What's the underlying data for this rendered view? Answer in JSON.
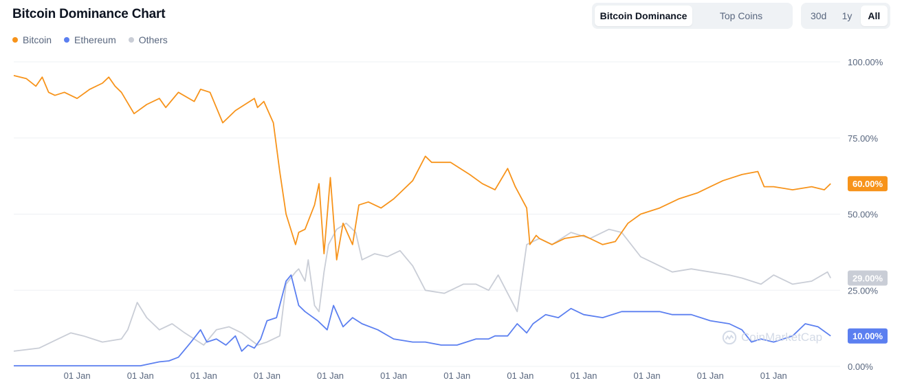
{
  "header": {
    "title": "Bitcoin Dominance Chart",
    "view_tabs": [
      {
        "label": "Bitcoin Dominance",
        "active": true
      },
      {
        "label": "Top Coins",
        "active": false
      }
    ],
    "range_tabs": [
      {
        "label": "30d",
        "active": false
      },
      {
        "label": "1y",
        "active": false
      },
      {
        "label": "All",
        "active": true
      }
    ]
  },
  "watermark": {
    "text": "CoinMarketCap",
    "icon": "coinmarketcap-logo-icon"
  },
  "colors": {
    "bitcoin": "#f7931a",
    "ethereum": "#5b7ff0",
    "others": "#c9cdd6",
    "grid": "#eef0f3"
  },
  "chart_data": {
    "type": "line",
    "y_axis": {
      "position": "right",
      "ylim": [
        0,
        100
      ],
      "ticks": [
        0,
        25,
        50,
        75,
        100
      ],
      "tick_labels": [
        "0.00%",
        "25.00%",
        "50.00%",
        "75.00%",
        "100.00%"
      ]
    },
    "x_axis": {
      "tick_labels": [
        "01 Jan",
        "01 Jan",
        "01 Jan",
        "01 Jan",
        "01 Jan",
        "01 Jan",
        "01 Jan",
        "01 Jan",
        "01 Jan",
        "01 Jan",
        "01 Jan",
        "01 Jan"
      ],
      "tick_positions": [
        1,
        2,
        3,
        4,
        5,
        6,
        7,
        8,
        9,
        10,
        11,
        12
      ],
      "xlim": [
        0,
        13.05
      ]
    },
    "legend": {
      "placement": "top-left"
    },
    "series": [
      {
        "name": "Bitcoin",
        "color": "#f7931a",
        "last_value_label": "60.00%",
        "x": [
          0,
          0.2,
          0.35,
          0.45,
          0.55,
          0.65,
          0.8,
          1.0,
          1.2,
          1.4,
          1.5,
          1.6,
          1.7,
          1.9,
          2.1,
          2.3,
          2.4,
          2.6,
          2.85,
          2.95,
          3.1,
          3.3,
          3.5,
          3.8,
          3.85,
          3.95,
          4.1,
          4.2,
          4.3,
          4.45,
          4.5,
          4.6,
          4.75,
          4.82,
          4.9,
          5.0,
          5.1,
          5.2,
          5.35,
          5.45,
          5.6,
          5.8,
          6.0,
          6.1,
          6.3,
          6.5,
          6.6,
          6.9,
          7.2,
          7.4,
          7.6,
          7.8,
          7.92,
          8.1,
          8.15,
          8.25,
          8.3,
          8.5,
          8.7,
          9.0,
          9.3,
          9.5,
          9.7,
          9.9,
          10.2,
          10.5,
          10.8,
          11.0,
          11.2,
          11.5,
          11.75,
          11.85,
          12.0,
          12.3,
          12.6,
          12.8,
          12.9
        ],
        "values": [
          95.5,
          94.5,
          92,
          95,
          90,
          89,
          90,
          88,
          91,
          93,
          95,
          92,
          90,
          83,
          86,
          88,
          85,
          90,
          87,
          91,
          90,
          80,
          84,
          88,
          85,
          87,
          80,
          64,
          50,
          40,
          44,
          45,
          53,
          60,
          37,
          62,
          35,
          47,
          40,
          53,
          54,
          52,
          55,
          57,
          61,
          69,
          67,
          67,
          63,
          60,
          58,
          65,
          59,
          52,
          40,
          43,
          42,
          40,
          42,
          43,
          40,
          41,
          47,
          50,
          52,
          55,
          57,
          59,
          61,
          63,
          64,
          59,
          59,
          58,
          59,
          58,
          60
        ]
      },
      {
        "name": "Ethereum",
        "color": "#5b7ff0",
        "last_value_label": "10.00%",
        "x": [
          0,
          1.0,
          2.0,
          2.3,
          2.45,
          2.6,
          2.8,
          2.95,
          3.05,
          3.2,
          3.35,
          3.5,
          3.6,
          3.7,
          3.8,
          3.9,
          4.0,
          4.15,
          4.3,
          4.38,
          4.5,
          4.6,
          4.8,
          4.95,
          5.05,
          5.2,
          5.35,
          5.5,
          5.75,
          6.0,
          6.3,
          6.5,
          6.75,
          7.0,
          7.3,
          7.5,
          7.6,
          7.8,
          7.95,
          8.1,
          8.2,
          8.4,
          8.6,
          8.8,
          9.0,
          9.3,
          9.6,
          9.9,
          10.2,
          10.4,
          10.7,
          11.0,
          11.3,
          11.5,
          11.65,
          11.8,
          12.0,
          12.3,
          12.5,
          12.7,
          12.9
        ],
        "values": [
          0.2,
          0.2,
          0.2,
          1.5,
          1.8,
          3,
          8,
          12,
          8,
          9,
          7,
          10,
          5,
          7,
          6,
          9,
          15,
          16,
          28,
          30,
          20,
          18,
          15,
          12,
          20,
          13,
          16,
          14,
          12,
          9,
          8,
          8,
          7,
          7,
          9,
          9,
          10,
          10,
          14,
          11,
          14,
          17,
          16,
          19,
          17,
          16,
          18,
          18,
          18,
          17,
          17,
          15,
          14,
          12,
          8,
          9,
          8,
          10,
          14,
          13,
          10
        ]
      },
      {
        "name": "Others",
        "color": "#c9cdd6",
        "last_value_label": "29.00%",
        "x": [
          0,
          0.4,
          0.7,
          0.9,
          1.1,
          1.4,
          1.7,
          1.8,
          1.95,
          2.1,
          2.3,
          2.5,
          2.7,
          3.0,
          3.2,
          3.4,
          3.6,
          3.85,
          4.0,
          4.2,
          4.3,
          4.45,
          4.5,
          4.6,
          4.65,
          4.75,
          4.82,
          4.9,
          4.97,
          5.1,
          5.25,
          5.4,
          5.5,
          5.7,
          5.9,
          6.0,
          6.1,
          6.3,
          6.5,
          6.8,
          7.1,
          7.3,
          7.5,
          7.65,
          7.8,
          7.95,
          8.1,
          8.3,
          8.5,
          8.8,
          9.1,
          9.4,
          9.6,
          9.9,
          10.2,
          10.4,
          10.7,
          11.0,
          11.3,
          11.5,
          11.8,
          12.0,
          12.3,
          12.6,
          12.85,
          12.9
        ],
        "values": [
          5,
          6,
          9,
          11,
          10,
          8,
          9,
          12,
          21,
          16,
          12,
          14,
          11,
          7,
          12,
          13,
          11,
          7,
          8,
          10,
          27,
          31,
          32,
          28,
          35,
          20,
          18,
          31,
          40,
          45,
          47,
          44,
          35,
          37,
          36,
          37,
          38,
          33,
          25,
          24,
          27,
          27,
          25,
          30,
          24,
          18,
          40,
          42,
          40,
          44,
          42,
          45,
          44,
          36,
          33,
          31,
          32,
          31,
          30,
          29,
          27,
          30,
          27,
          28,
          31,
          29
        ]
      }
    ]
  }
}
